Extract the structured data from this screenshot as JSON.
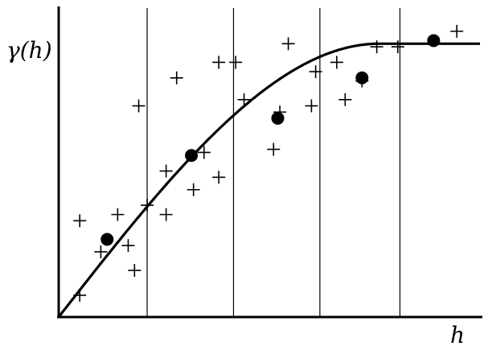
{
  "chart_data": {
    "type": "scatter",
    "title": "",
    "xlabel": "h",
    "ylabel": "γ(h)",
    "xlim": [
      0,
      10
    ],
    "ylim": [
      0,
      10
    ],
    "grid": false,
    "bin_boundaries": [
      2.1,
      4.15,
      6.2,
      8.1
    ],
    "series": [
      {
        "marker": "plus",
        "points": [
          [
            0.5,
            0.7
          ],
          [
            0.5,
            3.1
          ],
          [
            1.0,
            2.1
          ],
          [
            1.4,
            3.3
          ],
          [
            1.65,
            2.3
          ],
          [
            1.8,
            1.5
          ],
          [
            1.9,
            6.8
          ],
          [
            2.1,
            3.6
          ],
          [
            2.55,
            4.7
          ],
          [
            2.55,
            3.3
          ],
          [
            2.8,
            7.7
          ],
          [
            3.2,
            4.1
          ],
          [
            3.45,
            5.3
          ],
          [
            3.8,
            4.5
          ],
          [
            3.8,
            8.2
          ],
          [
            4.2,
            8.2
          ],
          [
            4.4,
            7.0
          ],
          [
            5.1,
            5.4
          ],
          [
            5.25,
            6.6
          ],
          [
            5.45,
            8.8
          ],
          [
            6.0,
            6.8
          ],
          [
            6.1,
            7.9
          ],
          [
            6.6,
            8.2
          ],
          [
            6.8,
            7.0
          ],
          [
            7.2,
            7.6
          ],
          [
            7.55,
            8.7
          ],
          [
            8.05,
            8.7
          ],
          [
            9.45,
            9.2
          ]
        ]
      },
      {
        "marker": "dot",
        "points": [
          [
            1.15,
            2.5
          ],
          [
            3.15,
            5.2
          ],
          [
            5.2,
            6.4
          ],
          [
            7.2,
            7.7
          ],
          [
            8.9,
            8.9
          ]
        ]
      },
      {
        "type": "line",
        "model": "spherical",
        "sill": 8.8,
        "range": 7.6
      }
    ]
  }
}
